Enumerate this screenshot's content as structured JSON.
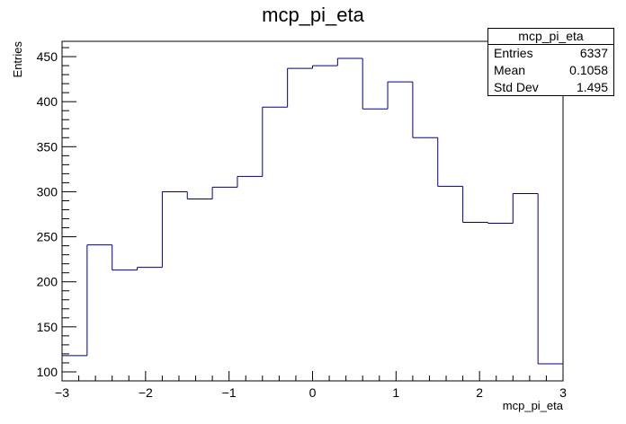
{
  "chart_data": {
    "type": "histogram",
    "title": "mcp_pi_eta",
    "xlabel": "mcp_pi_eta",
    "ylabel": "Entries",
    "xlim": [
      -3,
      3
    ],
    "ylim": [
      90,
      467
    ],
    "x_ticks": [
      -3,
      -2,
      -1,
      0,
      1,
      2,
      3
    ],
    "y_ticks": [
      100,
      150,
      200,
      250,
      300,
      350,
      400,
      450
    ],
    "bin_edges": [
      -3.0,
      -2.7,
      -2.4,
      -2.1,
      -1.8,
      -1.5,
      -1.2,
      -0.9,
      -0.6,
      -0.3,
      0.0,
      0.3,
      0.6,
      0.9,
      1.2,
      1.5,
      1.8,
      2.1,
      2.4,
      2.7,
      3.0
    ],
    "values": [
      118,
      241,
      213,
      216,
      300,
      292,
      305,
      317,
      394,
      437,
      440,
      448,
      392,
      422,
      360,
      306,
      266,
      265,
      298,
      109
    ],
    "line_color": "#000080",
    "stats": {
      "name": "mcp_pi_eta",
      "rows": [
        {
          "label": "Entries",
          "value": "6337"
        },
        {
          "label": "Mean",
          "value": "0.1058"
        },
        {
          "label": "Std Dev",
          "value": "1.495"
        }
      ]
    }
  }
}
